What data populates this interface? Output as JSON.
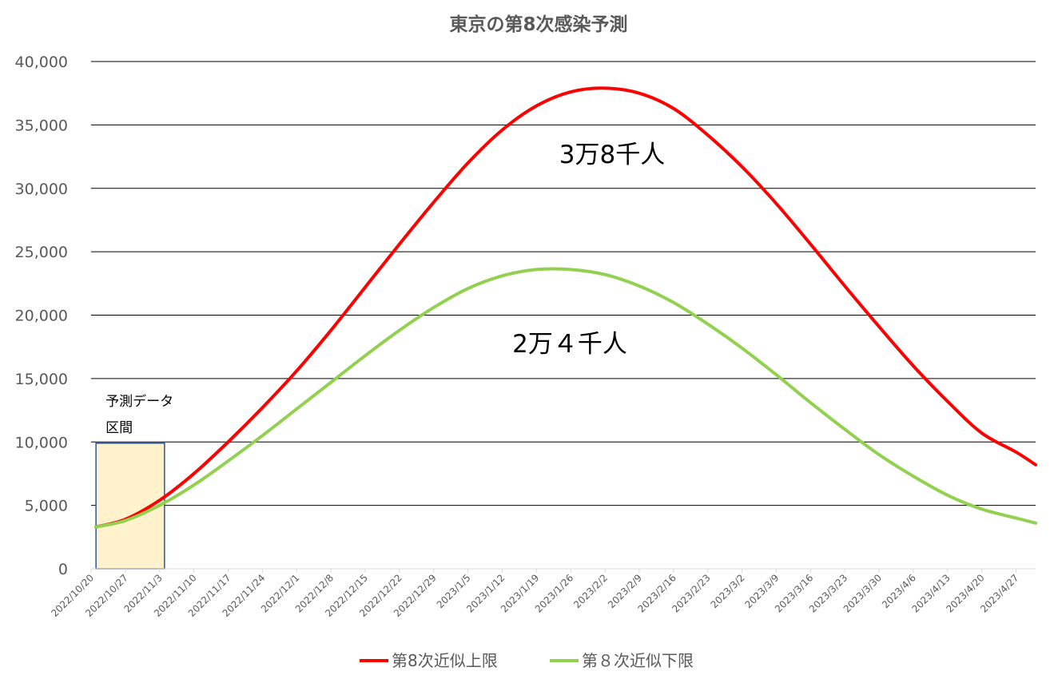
{
  "chart_data": {
    "type": "line",
    "title": "東京の第8次感染予測",
    "xlabel": "",
    "ylabel": "",
    "ylim": [
      0,
      40000
    ],
    "yticks": [
      "0",
      "5,000",
      "10,000",
      "15,000",
      "20,000",
      "25,000",
      "30,000",
      "35,000",
      "40,000"
    ],
    "x_range": [
      "2022/10/20",
      "2023/5/1"
    ],
    "xtick_labels": [
      "2022/10/20",
      "2022/10/27",
      "2022/11/3",
      "2022/11/10",
      "2022/11/17",
      "2022/11/24",
      "2022/12/1",
      "2022/12/8",
      "2022/12/15",
      "2022/12/22",
      "2022/12/29",
      "2023/1/5",
      "2023/1/12",
      "2023/1/19",
      "2023/1/26",
      "2023/2/2",
      "2023/2/9",
      "2023/2/16",
      "2023/2/23",
      "2023/3/2",
      "2023/3/9",
      "2023/3/16",
      "2023/3/23",
      "2023/3/30",
      "2023/4/6",
      "2023/4/13",
      "2023/4/20",
      "2023/4/27"
    ],
    "grid": true,
    "legend_position": "bottom",
    "x": [
      "2022/10/20",
      "2022/10/27",
      "2022/11/3",
      "2022/11/10",
      "2022/11/17",
      "2022/11/24",
      "2022/12/1",
      "2022/12/8",
      "2022/12/15",
      "2022/12/22",
      "2022/12/29",
      "2023/1/5",
      "2023/1/12",
      "2023/1/19",
      "2023/1/26",
      "2023/2/2",
      "2023/2/9",
      "2023/2/16",
      "2023/2/23",
      "2023/3/2",
      "2023/3/9",
      "2023/3/16",
      "2023/3/23",
      "2023/3/30",
      "2023/4/6",
      "2023/4/13",
      "2023/4/20",
      "2023/4/27",
      "2023/5/1"
    ],
    "series": [
      {
        "name": "第8次近似上限",
        "color": "#ff0000",
        "start": "2022/10/21",
        "values": [
          null,
          3900,
          5400,
          7500,
          10000,
          12700,
          15600,
          18800,
          22200,
          25600,
          28900,
          32000,
          34600,
          36500,
          37600,
          37900,
          37500,
          36300,
          34200,
          31700,
          28800,
          25600,
          22300,
          19100,
          16000,
          13200,
          10700,
          9200,
          8200
        ]
      },
      {
        "name": "第８次近似下限",
        "color": "#92d050",
        "start": "2022/10/21",
        "values": [
          null,
          3800,
          5000,
          6600,
          8500,
          10500,
          12600,
          14700,
          16800,
          18800,
          20600,
          22100,
          23100,
          23600,
          23600,
          23200,
          22300,
          21000,
          19300,
          17400,
          15300,
          13100,
          11000,
          9000,
          7300,
          5800,
          4700,
          4000,
          3600
        ]
      }
    ],
    "annotations": {
      "upper_peak": "3万8千人",
      "lower_peak": "2万４千人",
      "forecast_box_line1": "予測データ",
      "forecast_box_line2": "区間"
    },
    "forecast_box": {
      "x_start": "2022/10/21",
      "x_end": "2022/11/4",
      "y_top": 9900
    },
    "colors": {
      "gridline": "#000000",
      "forecast_fill": "#fff2cc",
      "forecast_border": "#2f5597",
      "text": "#595959"
    }
  }
}
